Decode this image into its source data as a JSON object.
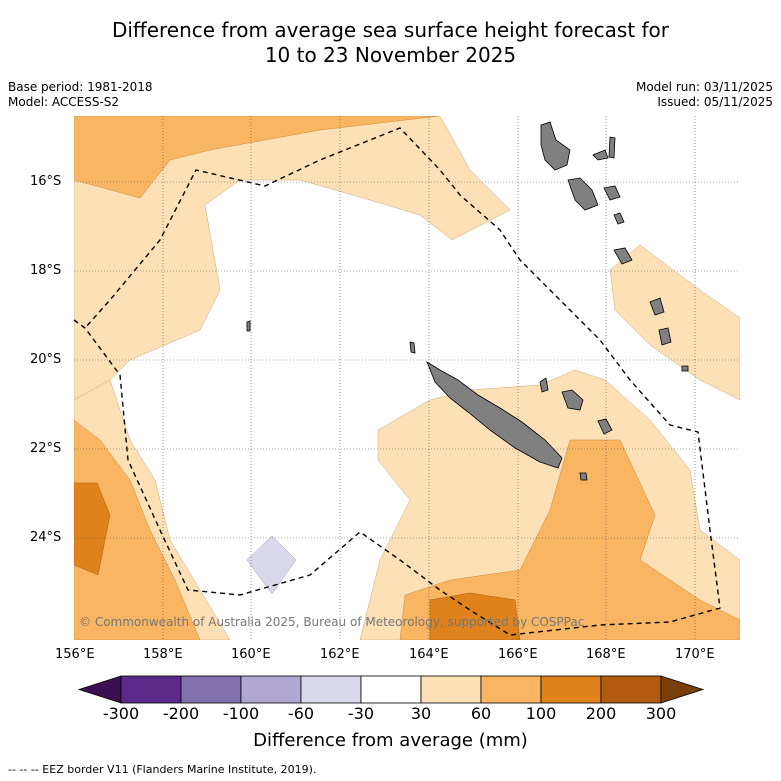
{
  "title_line1": "Difference from average sea surface height forecast for",
  "title_line2": "10 to 23 November 2025",
  "meta_left": [
    "Base period: 1981-2018",
    "Model: ACCESS-S2"
  ],
  "meta_right": [
    "Model run: 03/11/2025",
    "Issued: 05/11/2025"
  ],
  "copyright": "© Commonwealth of Australia 2025, Bureau of Meteorology, supported by COSPPac",
  "lat_labels": [
    "16°S",
    "18°S",
    "20°S",
    "22°S",
    "24°S"
  ],
  "lon_labels": [
    "156°E",
    "158°E",
    "160°E",
    "162°E",
    "164°E",
    "166°E",
    "168°E",
    "170°E"
  ],
  "colorbar": {
    "ticks": [
      "-300",
      "-200",
      "-100",
      "-60",
      "-30",
      "30",
      "60",
      "100",
      "200",
      "300"
    ],
    "colors": [
      "#3b0f52",
      "#5b2a8a",
      "#8070ad",
      "#b0a8d2",
      "#d9d8ea",
      "#ffffff",
      "#fde0b5",
      "#f9b562",
      "#e0821c",
      "#b25a0e",
      "#7a3e0a"
    ],
    "label": "Difference from average (mm)"
  },
  "footer": "--  --  -- EEZ border V11 (Flanders Marine Institute, 2019).",
  "colors": {
    "land": "#808080",
    "light_orange": "#fde0b5",
    "mid_orange": "#f9b562",
    "dark_orange": "#e0821c",
    "lavender": "#d9d8ea"
  }
}
